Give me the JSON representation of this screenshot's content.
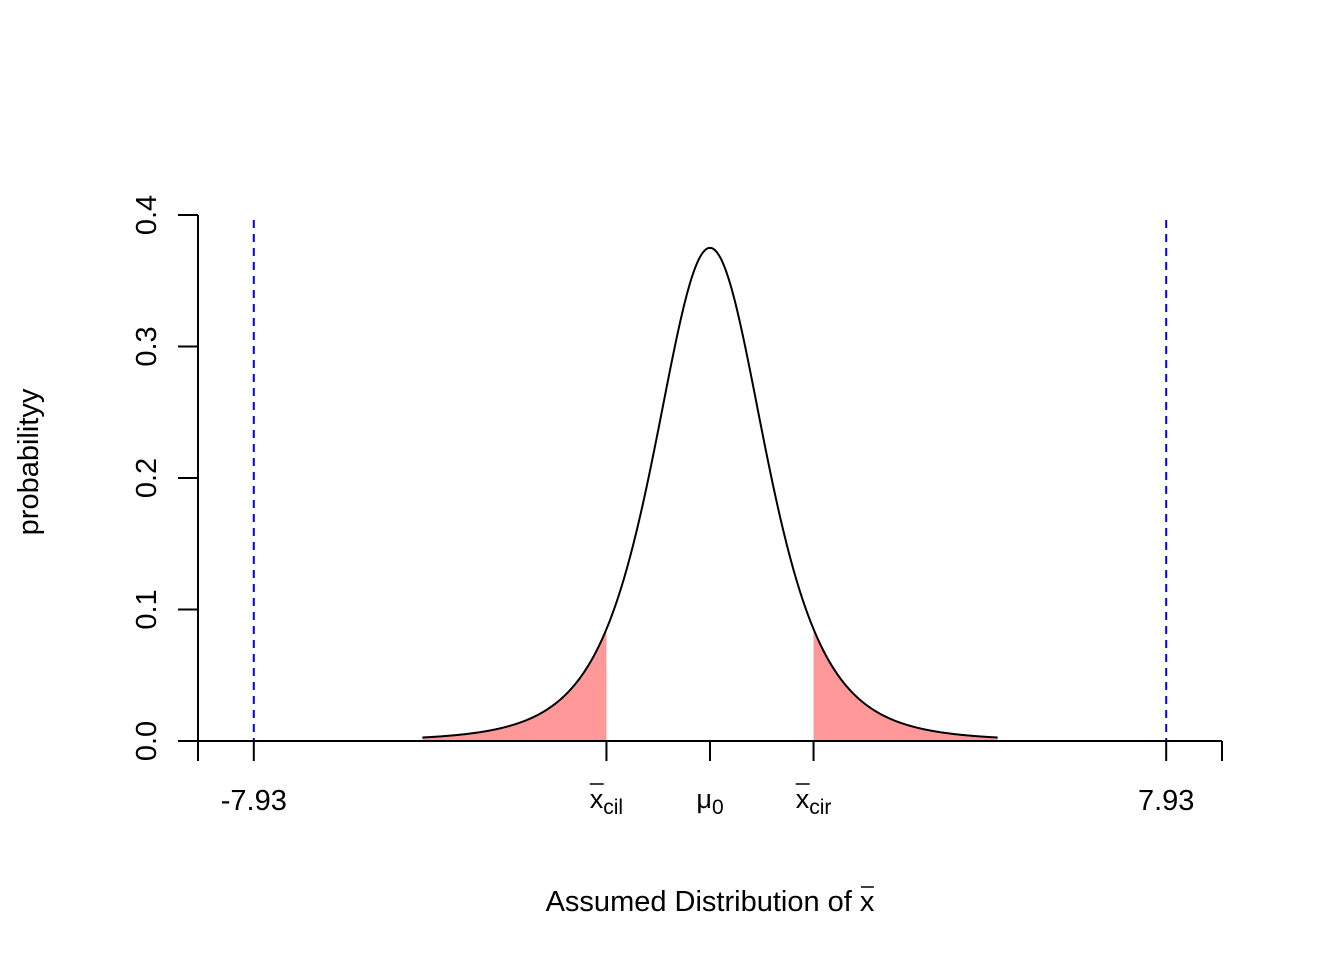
{
  "chart_data": {
    "type": "area",
    "title": "",
    "xlabel": "Assumed Distribution of x̄",
    "xlabel_main": "Assumed Distribution of ",
    "xlabel_symbol": "x",
    "ylabel": "probabilityy",
    "distribution": "t",
    "df": 4,
    "xlim": [
      -8.9,
      8.9
    ],
    "ylim": [
      0,
      0.4
    ],
    "y_ticks": [
      0.0,
      0.1,
      0.2,
      0.3,
      0.4
    ],
    "y_tick_labels": [
      "0.0",
      "0.1",
      "0.2",
      "0.3",
      "0.4"
    ],
    "x_ticks": [
      {
        "value": -8.9,
        "label": ""
      },
      {
        "value": -7.93,
        "label": "-7.93"
      },
      {
        "value": -1.8,
        "label": "x",
        "sub": "cil",
        "bar": true
      },
      {
        "value": 0,
        "label": "μ",
        "sub": "0",
        "bar": false
      },
      {
        "value": 1.8,
        "label": "x",
        "sub": "cir",
        "bar": true
      },
      {
        "value": 7.93,
        "label": "7.93"
      },
      {
        "value": 8.9,
        "label": ""
      }
    ],
    "shaded_regions": [
      {
        "from": -5.0,
        "to": -1.8,
        "color": "#ff9999",
        "name": "left-tail"
      },
      {
        "from": 1.8,
        "to": 5.0,
        "color": "#ff9999",
        "name": "right-tail"
      }
    ],
    "vertical_lines": [
      {
        "x": -7.93,
        "color": "#0000ff",
        "style": "dashed"
      },
      {
        "x": 7.93,
        "color": "#0000ff",
        "style": "dashed"
      }
    ],
    "curve_range": [
      -5.0,
      5.0
    ],
    "curve_color": "#000000"
  }
}
